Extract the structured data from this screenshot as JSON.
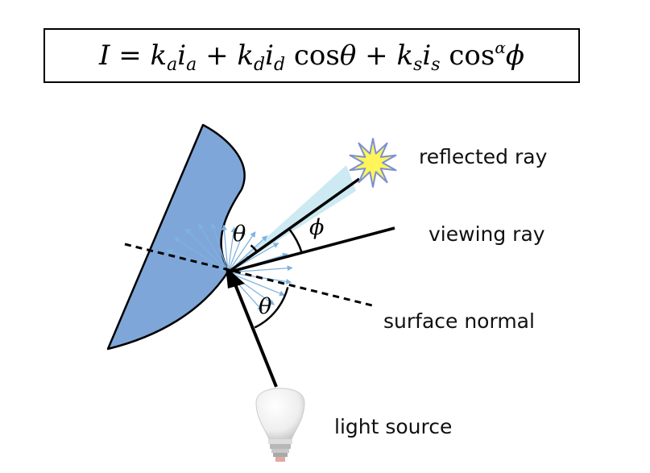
{
  "formula": {
    "I": "I",
    "eq": "=",
    "k": "k",
    "i": "i",
    "sub_a": "a",
    "sub_d": "d",
    "sub_s": "s",
    "plus": "+",
    "cos": "cos",
    "theta": "θ",
    "alpha": "α",
    "phi": "ϕ"
  },
  "labels": {
    "reflected_ray": "reflected ray",
    "viewing_ray": "viewing ray",
    "surface_normal": "surface normal",
    "light_source": "light source"
  },
  "angles": {
    "theta_upper": "θ",
    "theta_lower": "θ",
    "phi": "ϕ"
  },
  "colors": {
    "surface": "#7ea6d8",
    "scatter_arrows": "#7fb2e0",
    "specular_cone": "#cde9f2",
    "star_fill": "#fdf55a",
    "star_outline": "#7d8fd0"
  },
  "icons": {
    "light": "lightbulb-icon",
    "star": "star-burst-icon"
  }
}
